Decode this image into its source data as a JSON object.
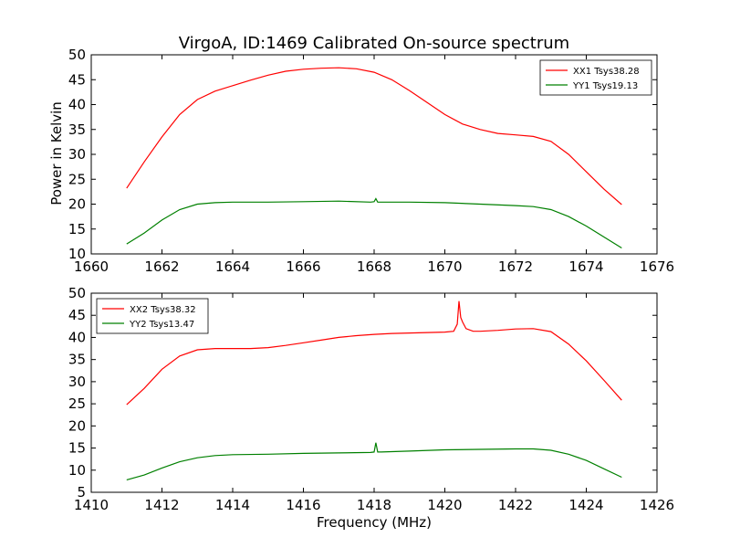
{
  "figure": {
    "title": "VirgoA, ID:1469 Calibrated On-source spectrum",
    "ylabel": "Power in Kelvin",
    "xlabel": "Frequency (MHz)"
  },
  "colors": {
    "red": "#ff0000",
    "green": "#008000"
  },
  "chart_data": [
    {
      "type": "line",
      "xlim": [
        1660,
        1676
      ],
      "ylim": [
        10,
        50
      ],
      "xticks": [
        1660,
        1662,
        1664,
        1666,
        1668,
        1670,
        1672,
        1674,
        1676
      ],
      "yticks": [
        10,
        15,
        20,
        25,
        30,
        35,
        40,
        45,
        50
      ],
      "legend_position": "top-right",
      "series": [
        {
          "name": "XX1 Tsys38.28",
          "color": "#ff0000",
          "x": [
            1661.0,
            1661.5,
            1662.0,
            1662.5,
            1663.0,
            1663.5,
            1664.0,
            1664.5,
            1665.0,
            1665.5,
            1666.0,
            1666.5,
            1667.0,
            1667.5,
            1668.0,
            1668.5,
            1669.0,
            1669.5,
            1670.0,
            1670.5,
            1671.0,
            1671.5,
            1672.0,
            1672.5,
            1673.0,
            1673.5,
            1674.0,
            1674.5,
            1675.0
          ],
          "y": [
            23.2,
            28.5,
            33.5,
            38.0,
            41.0,
            42.7,
            43.8,
            44.9,
            45.9,
            46.7,
            47.1,
            47.3,
            47.4,
            47.2,
            46.5,
            45.0,
            42.8,
            40.4,
            38.0,
            36.1,
            35.0,
            34.2,
            33.9,
            33.6,
            32.6,
            30.0,
            26.5,
            23.0,
            19.9
          ]
        },
        {
          "name": "YY1 Tsys19.13",
          "color": "#008000",
          "x": [
            1661.0,
            1661.5,
            1662.0,
            1662.5,
            1663.0,
            1663.5,
            1664.0,
            1665.0,
            1666.0,
            1667.0,
            1667.9,
            1668.0,
            1668.05,
            1668.1,
            1668.2,
            1669.0,
            1670.0,
            1671.0,
            1672.0,
            1672.5,
            1673.0,
            1673.5,
            1674.0,
            1674.5,
            1675.0
          ],
          "y": [
            12.0,
            14.2,
            16.8,
            18.9,
            20.0,
            20.3,
            20.4,
            20.4,
            20.5,
            20.6,
            20.4,
            20.5,
            21.1,
            20.4,
            20.4,
            20.4,
            20.3,
            20.0,
            19.7,
            19.5,
            18.9,
            17.5,
            15.6,
            13.4,
            11.2
          ]
        }
      ]
    },
    {
      "type": "line",
      "xlim": [
        1410,
        1426
      ],
      "ylim": [
        5,
        50
      ],
      "xticks": [
        1410,
        1412,
        1414,
        1416,
        1418,
        1420,
        1422,
        1424,
        1426
      ],
      "yticks": [
        5,
        10,
        15,
        20,
        25,
        30,
        35,
        40,
        45,
        50
      ],
      "legend_position": "top-left",
      "series": [
        {
          "name": "XX2 Tsys38.32",
          "color": "#ff0000",
          "x": [
            1411.0,
            1411.5,
            1412.0,
            1412.5,
            1413.0,
            1413.5,
            1414.0,
            1414.5,
            1415.0,
            1415.5,
            1416.0,
            1416.5,
            1417.0,
            1417.5,
            1418.0,
            1418.5,
            1419.0,
            1419.5,
            1420.0,
            1420.25,
            1420.35,
            1420.4,
            1420.45,
            1420.5,
            1420.6,
            1420.8,
            1421.0,
            1421.5,
            1422.0,
            1422.5,
            1423.0,
            1423.5,
            1424.0,
            1424.5,
            1425.0
          ],
          "y": [
            24.8,
            28.5,
            32.8,
            35.8,
            37.2,
            37.5,
            37.5,
            37.5,
            37.7,
            38.2,
            38.8,
            39.4,
            40.0,
            40.4,
            40.7,
            40.9,
            41.0,
            41.1,
            41.2,
            41.4,
            43.0,
            48.2,
            44.5,
            43.5,
            42.0,
            41.4,
            41.4,
            41.6,
            41.9,
            42.0,
            41.3,
            38.5,
            34.7,
            30.3,
            25.8
          ]
        },
        {
          "name": "YY2 Tsys13.47",
          "color": "#008000",
          "x": [
            1411.0,
            1411.5,
            1412.0,
            1412.5,
            1413.0,
            1413.5,
            1414.0,
            1415.0,
            1416.0,
            1417.0,
            1417.9,
            1418.0,
            1418.05,
            1418.1,
            1418.2,
            1419.0,
            1420.0,
            1421.0,
            1422.0,
            1422.5,
            1423.0,
            1423.5,
            1424.0,
            1424.5,
            1425.0
          ],
          "y": [
            7.8,
            8.9,
            10.5,
            11.9,
            12.8,
            13.3,
            13.5,
            13.6,
            13.8,
            13.9,
            14.0,
            14.1,
            16.2,
            14.1,
            14.1,
            14.3,
            14.6,
            14.7,
            14.8,
            14.8,
            14.5,
            13.6,
            12.2,
            10.3,
            8.4
          ]
        }
      ]
    }
  ]
}
